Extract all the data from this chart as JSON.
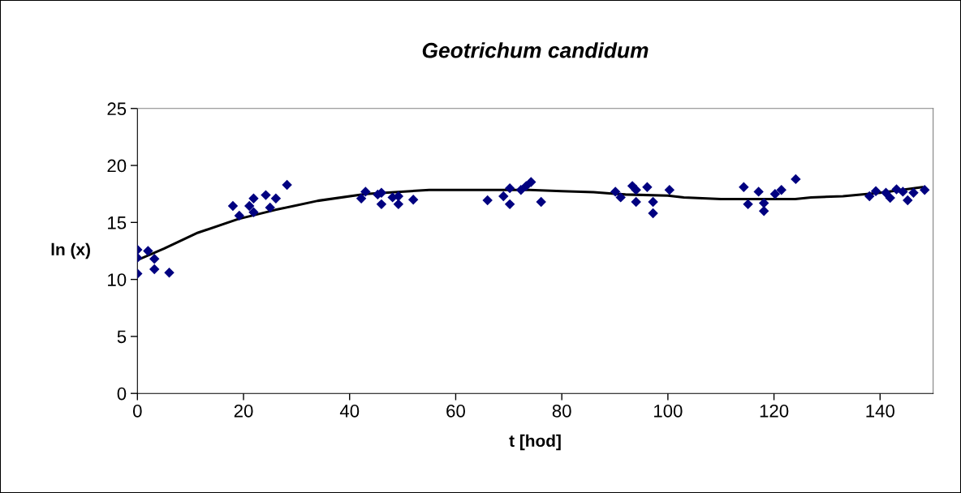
{
  "chart_data": {
    "type": "scatter",
    "title": "Geotrichum candidum",
    "xlabel": "t [hod]",
    "ylabel": "ln (x)",
    "xlim": [
      0,
      150
    ],
    "xticks": [
      0,
      20,
      40,
      60,
      80,
      100,
      120,
      140
    ],
    "ylim": [
      0,
      25
    ],
    "yticks": [
      0,
      5,
      10,
      15,
      20,
      25
    ],
    "grid": false,
    "legend": false,
    "marker": "diamond",
    "series": [
      {
        "color": "#000080",
        "x": [
          0,
          0,
          0,
          2,
          3.2,
          3.2,
          6,
          18,
          19.2,
          21.1,
          21.9,
          21.9,
          24.2,
          25,
          26.1,
          28.2,
          42.2,
          43,
          45.3,
          46,
          46,
          48.1,
          49.2,
          49.2,
          52,
          66,
          69,
          70.2,
          70.2,
          72.3,
          73.3,
          74.2,
          76.1,
          90.1,
          91.1,
          93.3,
          94,
          94,
          96.1,
          97.2,
          97.2,
          100.3,
          114.3,
          115.1,
          117.1,
          118.1,
          118.1,
          120.2,
          121.4,
          124.1,
          138,
          139.2,
          141.1,
          141.9,
          143.1,
          144.3,
          145.2,
          146.3,
          148.4
        ],
        "values": [
          12.6,
          11.9,
          10.5,
          12.5,
          11.8,
          10.9,
          10.6,
          16.45,
          15.6,
          16.45,
          17.1,
          15.9,
          17.4,
          16.3,
          17.1,
          18.3,
          17.1,
          17.7,
          17.45,
          17.6,
          16.6,
          17.2,
          17.3,
          16.6,
          17.0,
          16.95,
          17.3,
          18.0,
          16.6,
          17.85,
          18.2,
          18.55,
          16.8,
          17.7,
          17.2,
          18.2,
          17.85,
          16.8,
          18.1,
          16.8,
          15.8,
          17.85,
          18.1,
          16.6,
          17.7,
          16.7,
          16.0,
          17.5,
          17.85,
          18.8,
          17.3,
          17.75,
          17.6,
          17.15,
          17.9,
          17.7,
          16.95,
          17.6,
          17.85
        ]
      },
      {
        "type": "line",
        "color": "#000000",
        "line_style": "solid",
        "marker": "none",
        "x": [
          0,
          5,
          11.4,
          19,
          26,
          34,
          43,
          55,
          74,
          80,
          86,
          92,
          100,
          103,
          110,
          124,
          127,
          133,
          140,
          148
        ],
        "values": [
          11.7,
          12.7,
          14.1,
          15.3,
          16.1,
          16.9,
          17.5,
          17.85,
          17.85,
          17.75,
          17.65,
          17.45,
          17.35,
          17.2,
          17.05,
          17.05,
          17.2,
          17.3,
          17.6,
          18.1
        ]
      }
    ]
  }
}
